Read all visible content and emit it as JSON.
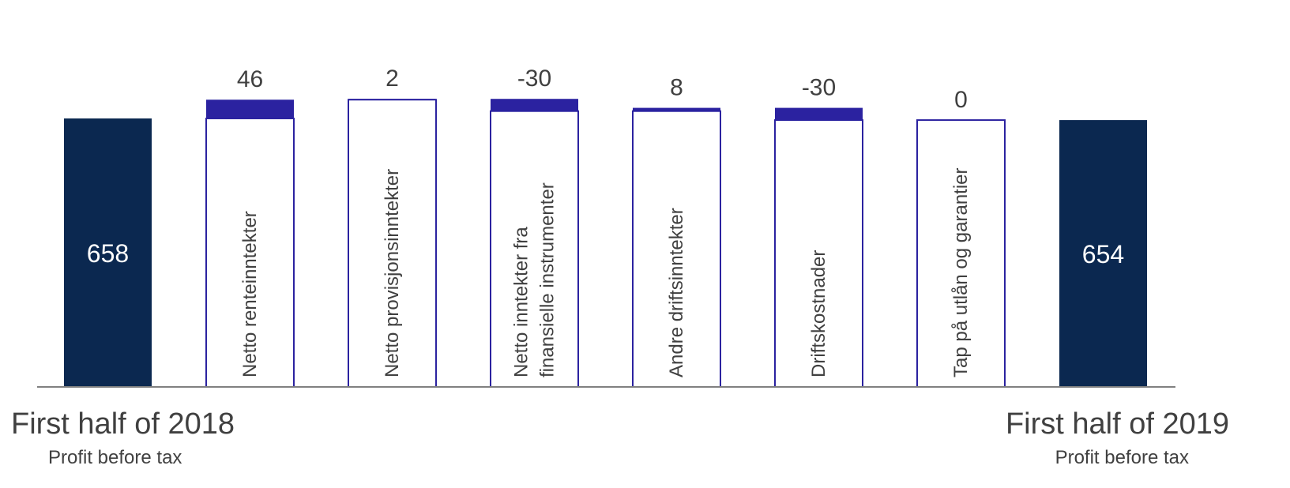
{
  "chart_data": {
    "type": "bar",
    "subtype": "waterfall",
    "categories": [
      "First half of 2018",
      "Netto renteinntekter",
      "Netto provisjonsinntekter",
      "Netto inntekter fra finansielle instrumenter",
      "Andre driftsinntekter",
      "Driftskostnader",
      "Tap på utlån og garantier",
      "First half of 2019"
    ],
    "category_label_lines": [
      [],
      [
        "Netto renteinntekter"
      ],
      [
        "Netto provisjonsinntekter"
      ],
      [
        "Netto   inntekter   fra",
        "finansielle  instrumenter"
      ],
      [
        "Andre driftsinntekter"
      ],
      [
        "Driftskostnader"
      ],
      [
        "Tap på utlån og garantier"
      ],
      []
    ],
    "values": [
      658,
      46,
      2,
      -30,
      8,
      -30,
      0,
      654
    ],
    "value_labels": [
      "658",
      "46",
      "2",
      "-30",
      "8",
      "-30",
      "0",
      "654"
    ],
    "kinds": [
      "total",
      "delta",
      "delta",
      "delta",
      "delta",
      "delta",
      "delta",
      "total"
    ],
    "start_label": {
      "title": "First half of 2018",
      "subtitle": "Profit before tax"
    },
    "end_label": {
      "title": "First half of 2019",
      "subtitle": "Profit before tax"
    },
    "grid": false,
    "legend": "none",
    "colors": {
      "total": "#0b2850",
      "delta": "#2b22a0",
      "outline": "#2b22a0",
      "axis": "#808080",
      "text_dark": "#404040",
      "text_light": "#ffffff"
    }
  }
}
